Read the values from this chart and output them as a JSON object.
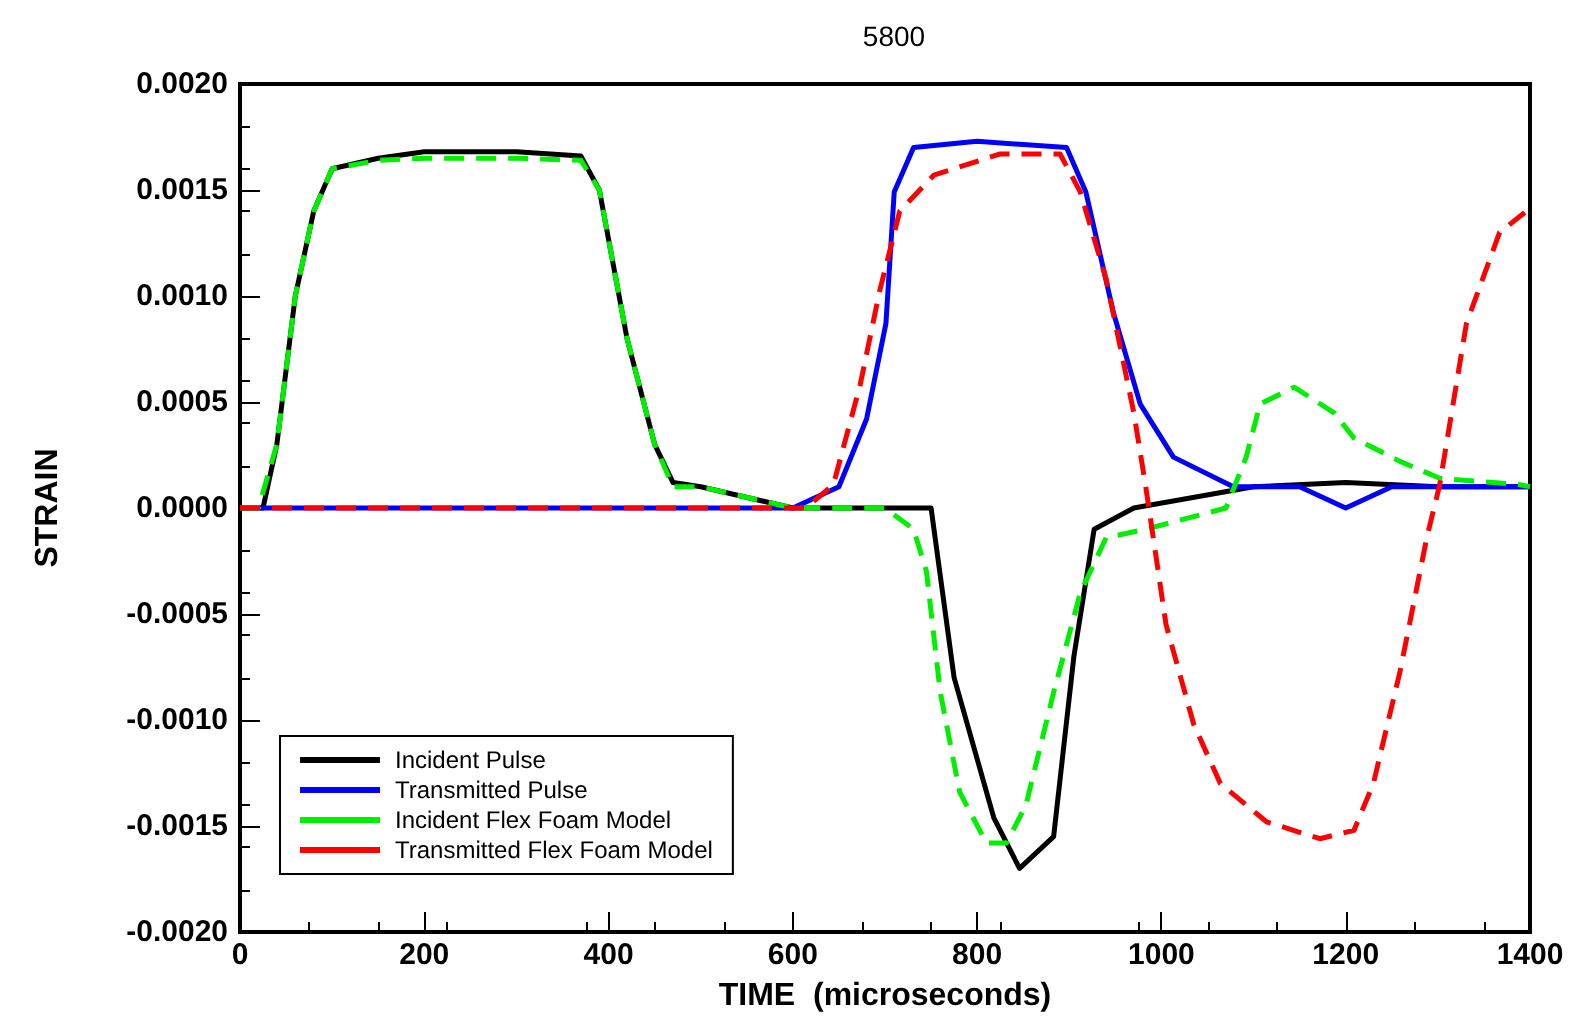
{
  "chart_data": {
    "type": "line",
    "title": "5800",
    "xlabel": "TIME  (microseconds)",
    "ylabel": "STRAIN",
    "xlim": [
      0,
      1400
    ],
    "xticks": [
      0,
      200,
      400,
      600,
      800,
      1000,
      1200,
      1400
    ],
    "ylim": [
      -0.002,
      0.002
    ],
    "yticks": [
      {
        "value": -0.002,
        "label": "-0.0020"
      },
      {
        "value": -0.0015,
        "label": "-0.0015"
      },
      {
        "value": -0.001,
        "label": "-0.0010"
      },
      {
        "value": -0.0005,
        "label": "-0.0005"
      },
      {
        "value": 0,
        "label": "0.0000"
      },
      {
        "value": 0.0005,
        "label": "0.0005"
      },
      {
        "value": 0.001,
        "label": "0.0010"
      },
      {
        "value": 0.0015,
        "label": "0.0015"
      },
      {
        "value": 0.002,
        "label": "0.0020"
      }
    ],
    "grid": false,
    "legend": "bottom left",
    "marker": "none",
    "series": [
      {
        "name": "Incident Pulse",
        "color": "#000000",
        "line_style": "solid",
        "x": [
          0,
          25,
          40,
          60,
          80,
          100,
          150,
          200,
          300,
          370,
          390,
          420,
          450,
          470,
          500,
          600,
          700,
          750,
          775,
          818,
          846,
          883,
          905,
          927,
          970,
          1100,
          1200,
          1300,
          1400
        ],
        "values": [
          0,
          0,
          0.0003,
          0.001,
          0.0014,
          0.0016,
          0.00165,
          0.00168,
          0.00168,
          0.00166,
          0.0015,
          0.0008,
          0.0003,
          0.00012,
          0.0001,
          0,
          0,
          0,
          -0.0008,
          -0.00146,
          -0.0017,
          -0.00155,
          -0.0007,
          -0.0001,
          0,
          0.0001,
          0.00012,
          0.0001,
          0.0001
        ]
      },
      {
        "name": "Transmitted Pulse",
        "color": "#0000ff",
        "line_style": "solid",
        "x": [
          0,
          600,
          650,
          680,
          701,
          710,
          731,
          800,
          897,
          918,
          948,
          977,
          1013,
          1078,
          1150,
          1200,
          1250,
          1400
        ],
        "values": [
          0,
          0,
          0.0001,
          0.00042,
          0.00087,
          0.00149,
          0.0017,
          0.00173,
          0.0017,
          0.00149,
          0.00092,
          0.00049,
          0.00024,
          0.0001,
          0.0001,
          0,
          0.0001,
          0.0001
        ]
      },
      {
        "name": "Incident Flex Foam Model",
        "color": "#00ee00",
        "line_style": "dashed",
        "x": [
          0,
          20,
          40,
          60,
          80,
          100,
          150,
          200,
          300,
          370,
          390,
          420,
          450,
          470,
          500,
          600,
          700,
          731,
          745,
          760,
          781,
          810,
          832,
          853,
          883,
          912,
          940,
          983,
          1070,
          1092,
          1107,
          1144,
          1187,
          1209,
          1259,
          1302,
          1389,
          1400
        ],
        "values": [
          0,
          0,
          0.0003,
          0.001,
          0.0014,
          0.0016,
          0.00164,
          0.00165,
          0.00165,
          0.00164,
          0.0015,
          0.0008,
          0.0003,
          0.0001,
          0.0001,
          0,
          0,
          -0.0001,
          -0.0003,
          -0.00087,
          -0.00134,
          -0.00158,
          -0.00158,
          -0.0014,
          -0.00087,
          -0.0004,
          -0.00014,
          -0.0001,
          0,
          0.00024,
          0.00049,
          0.00057,
          0.00045,
          0.00033,
          0.00022,
          0.00014,
          0.00011,
          0.0001
        ]
      },
      {
        "name": "Transmitted Flex Foam Model",
        "color": "#ff0000",
        "line_style": "dashed",
        "x": [
          0,
          614,
          644,
          673,
          694,
          716,
          753,
          825,
          890,
          912,
          940,
          970,
          983,
          1005,
          1035,
          1064,
          1114,
          1172,
          1209,
          1230,
          1259,
          1288,
          1302,
          1331,
          1367,
          1396
        ],
        "values": [
          0,
          0,
          0.00011,
          0.00058,
          0.00102,
          0.0014,
          0.00157,
          0.00167,
          0.00167,
          0.00149,
          0.00108,
          0.00045,
          0.0001,
          -0.00055,
          -0.00102,
          -0.0013,
          -0.00148,
          -0.00156,
          -0.00152,
          -0.0013,
          -0.00077,
          -0.00014,
          0.00011,
          0.00087,
          0.0013,
          0.0014
        ]
      }
    ]
  }
}
